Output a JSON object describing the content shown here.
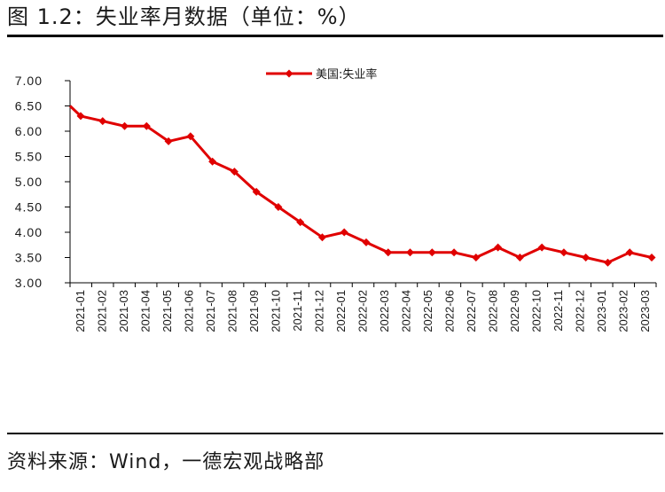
{
  "title": "图 1.2：失业率月数据（单位：%）",
  "source": "资料来源：Wind，一德宏观战略部",
  "colors": {
    "series": "#e00000",
    "axis": "#000000",
    "text": "#1a1a1a"
  },
  "chart_data": {
    "type": "line",
    "title": "",
    "xlabel": "",
    "ylabel": "",
    "ylim": [
      3.0,
      7.0
    ],
    "yticks": [
      "7.00",
      "6.50",
      "6.00",
      "5.50",
      "5.00",
      "4.50",
      "4.00",
      "3.50",
      "3.00"
    ],
    "grid": false,
    "legend_position": "top-center",
    "categories": [
      "2021-01",
      "2021-02",
      "2021-03",
      "2021-04",
      "2021-05",
      "2021-06",
      "2021-07",
      "2021-08",
      "2021-09",
      "2021-10",
      "2021-11",
      "2021-12",
      "2022-01",
      "2022-02",
      "2022-03",
      "2022-04",
      "2022-05",
      "2022-06",
      "2022-07",
      "2022-08",
      "2022-09",
      "2022-10",
      "2022-11",
      "2022-12",
      "2023-01",
      "2023-02",
      "2023-03"
    ],
    "series": [
      {
        "name": "美国:失业率",
        "color": "#e00000",
        "x": [
          "2021-01-01",
          "2021-01",
          "2021-02",
          "2021-03",
          "2021-04",
          "2021-05",
          "2021-06",
          "2021-07",
          "2021-08",
          "2021-09",
          "2021-10",
          "2021-11",
          "2021-12",
          "2022-01",
          "2022-02",
          "2022-03",
          "2022-04",
          "2022-05",
          "2022-06",
          "2022-07",
          "2022-08",
          "2022-09",
          "2022-10",
          "2022-11",
          "2022-12",
          "2023-01",
          "2023-02",
          "2023-03"
        ],
        "values": [
          6.5,
          6.3,
          6.2,
          6.1,
          6.1,
          5.8,
          5.9,
          5.4,
          5.2,
          4.8,
          4.5,
          4.2,
          3.9,
          4.0,
          3.8,
          3.6,
          3.6,
          3.6,
          3.6,
          3.5,
          3.7,
          3.5,
          3.7,
          3.6,
          3.5,
          3.4,
          3.6,
          3.5
        ]
      }
    ]
  }
}
